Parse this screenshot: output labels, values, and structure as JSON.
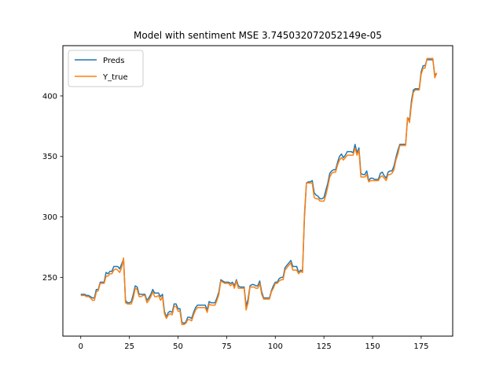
{
  "chart_data": {
    "type": "line",
    "title": "Model with sentiment MSE 3.745032072052149e-05",
    "xlabel": "",
    "ylabel": "",
    "xlim": [
      -9.2,
      191.2
    ],
    "ylim": [
      201.4,
      441.6
    ],
    "x_ticks": [
      0,
      25,
      50,
      75,
      100,
      125,
      150,
      175
    ],
    "y_ticks": [
      250,
      300,
      350,
      400
    ],
    "x_tick_labels": [
      "0",
      "25",
      "50",
      "75",
      "100",
      "125",
      "150",
      "175"
    ],
    "y_tick_labels": [
      "250",
      "300",
      "350",
      "400"
    ],
    "grid": false,
    "legend_position": "top-left",
    "series": [
      {
        "name": "Preds",
        "color": "#1f77b4",
        "values": [
          236,
          236,
          236,
          235,
          235,
          234,
          233,
          233,
          240,
          240,
          246,
          246,
          246,
          254,
          253,
          255,
          255,
          259,
          259,
          259,
          257,
          261,
          265,
          231,
          229,
          229,
          230,
          236,
          243,
          242,
          236,
          236,
          236,
          236,
          231,
          233,
          236,
          240,
          237,
          237,
          237,
          234,
          236,
          222,
          217,
          221,
          222,
          221,
          228,
          228,
          224,
          224,
          213,
          212,
          213,
          217,
          217,
          216,
          221,
          225,
          227,
          227,
          227,
          227,
          227,
          223,
          230,
          229,
          229,
          229,
          233,
          238,
          248,
          247,
          246,
          246,
          246,
          245,
          246,
          243,
          248,
          243,
          242,
          242,
          242,
          226,
          232,
          243,
          244,
          244,
          243,
          243,
          247,
          238,
          233,
          233,
          233,
          233,
          239,
          243,
          246,
          246,
          249,
          250,
          250,
          258,
          260,
          262,
          264,
          259,
          259,
          259,
          254,
          256,
          255,
          300,
          328,
          329,
          329,
          330,
          320,
          318,
          317,
          315,
          315,
          316,
          322,
          328,
          336,
          338,
          339,
          339,
          345,
          350,
          352,
          349,
          351,
          354,
          354,
          354,
          353,
          360,
          353,
          357,
          336,
          335,
          335,
          338,
          330,
          332,
          332,
          331,
          331,
          331,
          336,
          337,
          334,
          332,
          337,
          338,
          338,
          342,
          349,
          355,
          360,
          360,
          360,
          360,
          382,
          380,
          396,
          405,
          406,
          406,
          406,
          420,
          425,
          425,
          430,
          430,
          430,
          430,
          417,
          419
        ]
      },
      {
        "name": "Y_true",
        "color": "#ff7f0e",
        "values": [
          235,
          235,
          235,
          234,
          234,
          233,
          231,
          231,
          238,
          239,
          245,
          245,
          245,
          251,
          251,
          253,
          253,
          256,
          257,
          256,
          254,
          258,
          266,
          229,
          228,
          228,
          228,
          233,
          241,
          240,
          234,
          234,
          235,
          235,
          229,
          231,
          234,
          238,
          234,
          234,
          235,
          231,
          234,
          220,
          216,
          219,
          220,
          219,
          226,
          226,
          222,
          222,
          211,
          211,
          212,
          215,
          215,
          214,
          219,
          223,
          225,
          225,
          225,
          225,
          225,
          221,
          228,
          227,
          227,
          227,
          231,
          236,
          247,
          246,
          245,
          245,
          245,
          243,
          245,
          241,
          247,
          241,
          241,
          241,
          241,
          223,
          229,
          242,
          242,
          242,
          241,
          241,
          245,
          236,
          232,
          232,
          232,
          232,
          238,
          241,
          245,
          245,
          247,
          248,
          248,
          256,
          258,
          260,
          262,
          256,
          256,
          256,
          253,
          255,
          254,
          303,
          328,
          328,
          328,
          328,
          316,
          315,
          315,
          313,
          313,
          313,
          318,
          325,
          333,
          336,
          337,
          337,
          343,
          347,
          349,
          347,
          349,
          351,
          351,
          351,
          351,
          357,
          351,
          355,
          333,
          333,
          333,
          335,
          329,
          330,
          330,
          330,
          330,
          330,
          333,
          334,
          332,
          330,
          335,
          335,
          336,
          339,
          347,
          352,
          359,
          359,
          359,
          359,
          382,
          378,
          393,
          403,
          405,
          405,
          405,
          418,
          423,
          423,
          431,
          431,
          431,
          431,
          415,
          419
        ]
      }
    ]
  }
}
